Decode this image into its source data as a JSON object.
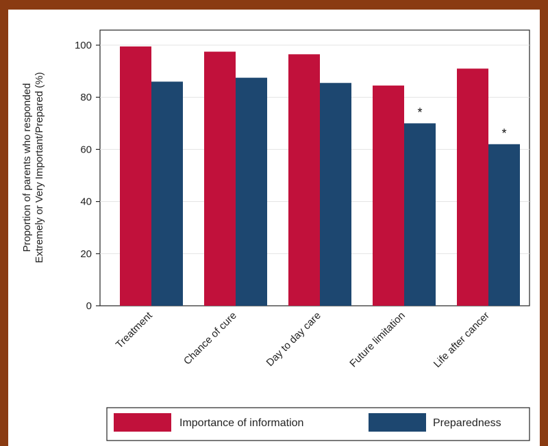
{
  "chart_data": {
    "type": "bar",
    "ylabel_line1": "Proportion of parents who responded",
    "ylabel_line2": "Extremely or Very Important/Prepared (%)",
    "ylim": [
      0,
      100
    ],
    "yticks": [
      0,
      20,
      40,
      60,
      80,
      100
    ],
    "categories": [
      "Treatment",
      "Chance of cure",
      "Day to day care",
      "Future limitation",
      "Life after cancer"
    ],
    "series": [
      {
        "name": "Importance of information",
        "color": "#c1113b",
        "values": [
          99.5,
          97.5,
          96.5,
          84.5,
          91
        ]
      },
      {
        "name": "Preparedness",
        "color": "#1d4770",
        "values": [
          86,
          87.5,
          85.5,
          70,
          62
        ]
      }
    ],
    "significance_markers": [
      {
        "category": "Future limitation",
        "series": "Preparedness",
        "symbol": "*"
      },
      {
        "category": "Life after cancer",
        "series": "Preparedness",
        "symbol": "*"
      }
    ],
    "grid": true,
    "legend_position": "bottom"
  }
}
